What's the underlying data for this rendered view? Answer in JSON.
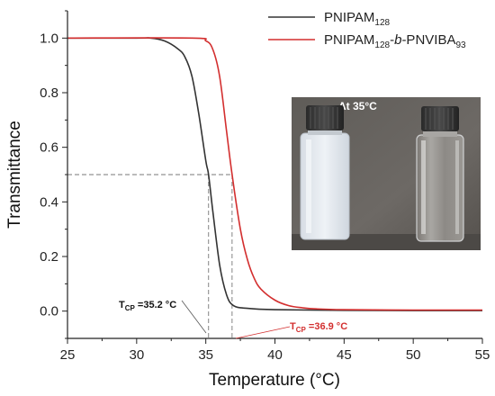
{
  "chart_data": {
    "type": "line",
    "xlabel": "Temperature (°C)",
    "ylabel": "Transmittance",
    "xlim": [
      25,
      55
    ],
    "ylim": [
      -0.1,
      1.1
    ],
    "xticks": [
      25,
      30,
      35,
      40,
      45,
      50,
      55
    ],
    "yticks": [
      0.0,
      0.2,
      0.4,
      0.6,
      0.8,
      1.0
    ],
    "xtick_labels": [
      "25",
      "30",
      "35",
      "40",
      "45",
      "50",
      "55"
    ],
    "ytick_labels": [
      "0.0",
      "0.2",
      "0.4",
      "0.6",
      "0.8",
      "1.0"
    ],
    "grid": false,
    "legend_position": "top-right",
    "series": [
      {
        "legend_main": "PNIPAM",
        "legend_sub": "128",
        "color": "#333333",
        "x": [
          25,
          30,
          31,
          32,
          33,
          33.5,
          34,
          34.5,
          35,
          35.2,
          35.5,
          36,
          36.5,
          37,
          38,
          40,
          45,
          50,
          55
        ],
        "y": [
          1.0,
          1.0,
          1.0,
          0.99,
          0.96,
          0.93,
          0.86,
          0.72,
          0.55,
          0.5,
          0.37,
          0.17,
          0.06,
          0.02,
          0.01,
          0.005,
          0.003,
          0.002,
          0.002
        ]
      },
      {
        "legend_main": "PNIPAM",
        "legend_sub1": "128",
        "legend_sep": "-",
        "legend_italic": "b",
        "legend_mid": "-PNVIBA",
        "legend_sub2": "93",
        "color": "#d32f2f",
        "x": [
          25,
          34,
          35,
          35.5,
          36,
          36.5,
          36.9,
          37.5,
          38,
          38.5,
          39,
          40,
          41,
          42,
          43,
          45,
          50,
          55
        ],
        "y": [
          1.0,
          1.0,
          0.99,
          0.96,
          0.86,
          0.66,
          0.5,
          0.3,
          0.19,
          0.12,
          0.08,
          0.04,
          0.02,
          0.012,
          0.008,
          0.005,
          0.004,
          0.004
        ]
      }
    ],
    "reference_lines": {
      "y_half": 0.5,
      "x_black": 35.2,
      "x_red": 36.9,
      "color": "#777777"
    },
    "annotations": [
      {
        "main": "T",
        "sub": "CP",
        "value": " =35.2 °C",
        "color": "#111111"
      },
      {
        "main": "T",
        "sub": "CP",
        "value": " =36.9 °C",
        "color": "#d32f2f"
      }
    ],
    "inset_photo": {
      "label": "At 35°C",
      "left_vial": "turbid",
      "right_vial": "clear"
    }
  }
}
